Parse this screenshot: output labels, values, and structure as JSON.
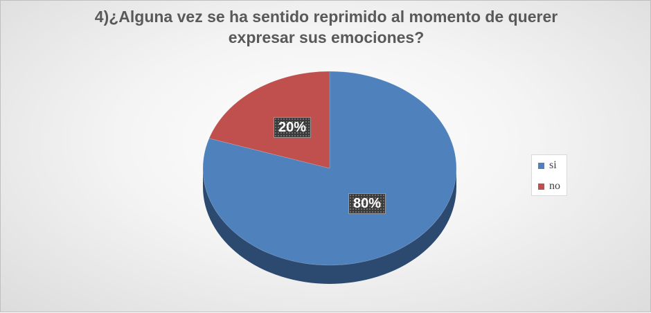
{
  "chart_data": {
    "type": "pie",
    "title_lines": [
      "4)¿Alguna vez se ha sentido reprimido al momento de querer",
      "expresar sus emociones?"
    ],
    "categories": [
      "si",
      "no"
    ],
    "values": [
      80,
      20
    ],
    "data_labels": [
      "80%",
      "20%"
    ],
    "colors": [
      "#4f81bd",
      "#c0504d"
    ],
    "side_colors": [
      "#2c4a70",
      "#7a2f2d"
    ],
    "legend_position": "right",
    "style": "3d"
  }
}
